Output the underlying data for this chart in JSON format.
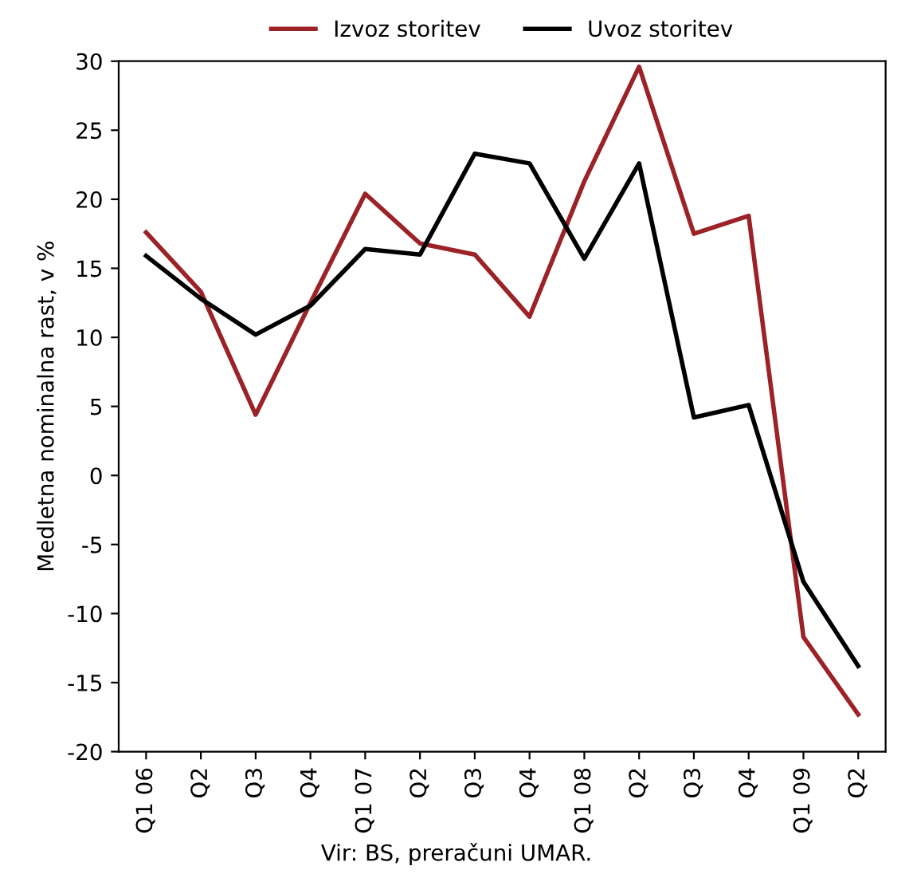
{
  "chart_data": {
    "type": "line",
    "ylabel": "Medletna nominalna rast, v %",
    "categories": [
      "Q1 06",
      "Q2",
      "Q3",
      "Q4",
      "Q1 07",
      "Q2",
      "Q3",
      "Q4",
      "Q1 08",
      "Q2",
      "Q3",
      "Q4",
      "Q1 09",
      "Q2"
    ],
    "series": [
      {
        "name": "Izvoz storitev",
        "color": "#9b2226",
        "values": [
          17.6,
          13.3,
          4.4,
          12.5,
          20.4,
          16.8,
          16.0,
          11.5,
          21.3,
          29.6,
          17.5,
          18.8,
          -11.7,
          -17.3
        ]
      },
      {
        "name": "Uvoz storitev",
        "color": "#000000",
        "values": [
          15.9,
          12.8,
          10.2,
          12.3,
          16.4,
          16.0,
          23.3,
          22.6,
          15.7,
          22.6,
          4.2,
          5.1,
          -7.7,
          -13.8
        ]
      }
    ],
    "ylim": [
      -20,
      30
    ],
    "yticks": [
      -20,
      -15,
      -10,
      -5,
      0,
      5,
      10,
      15,
      20,
      25,
      30
    ],
    "grid": false,
    "legend": "top",
    "marker": "none",
    "line_style": "solid",
    "annotations": [
      "Vir: BS, preračuni UMAR."
    ]
  }
}
